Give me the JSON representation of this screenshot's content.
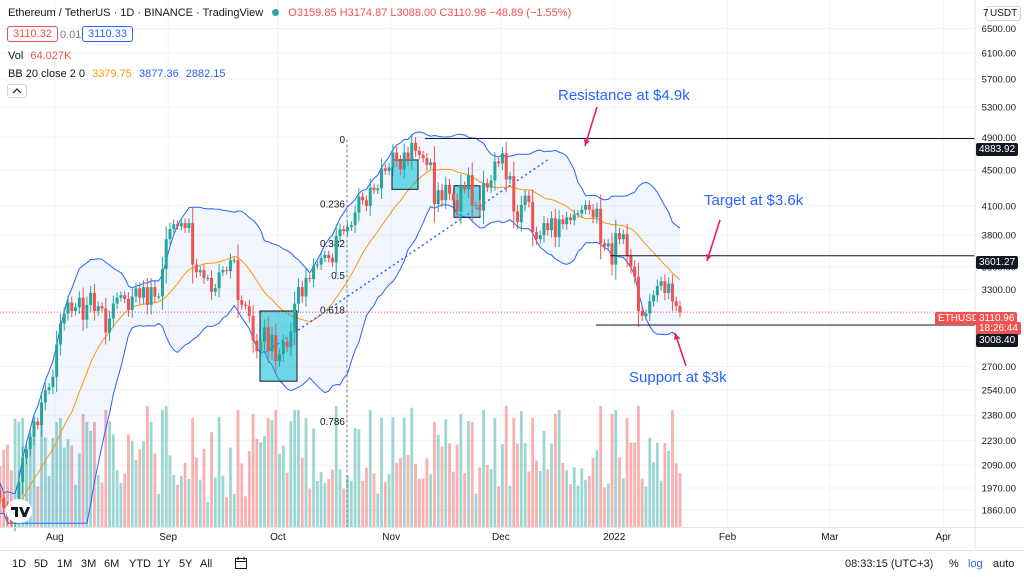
{
  "header": {
    "symbol": "Ethereum / TetherUS · 1D · BINANCE · TradingView",
    "ohlc": "O3159.85 H3174.87 L3088.00 C3110.96 −48.89 (−1.55%)",
    "bid": "3110.32",
    "spread": "0.01",
    "ask": "3110.33",
    "vol_label": "Vol",
    "vol_value": "64.027K",
    "bb_label": "BB 20 close 2 0",
    "bb_basis": "3379.75",
    "bb_upper": "3877.36",
    "bb_lower": "2882.15"
  },
  "price_axis": {
    "currency": "USDT",
    "top_tick": "7"
  },
  "colors": {
    "up": "#26a69a",
    "down": "#ef5350",
    "bb_band": "#2962ff",
    "bb_basis": "#ff9800",
    "annotation_text": "#2962ff",
    "arrow": "#e91e63"
  },
  "bottom_bar": {
    "ranges": [
      "1D",
      "5D",
      "1M",
      "3M",
      "6M",
      "YTD",
      "1Y",
      "5Y",
      "All"
    ],
    "time": "08:33:15 (UTC+3)",
    "percent": "%",
    "log": "log",
    "auto": "auto"
  },
  "chart_data": {
    "type": "candlestick",
    "title": "Ethereum / TetherUS · 1D · BINANCE",
    "y_scale": "log",
    "ylim": [
      1780,
      7000
    ],
    "y_ticks": [
      6500,
      6100,
      5700,
      5300,
      4900,
      4500,
      4100,
      3800,
      3500,
      3300,
      3000,
      2700,
      2540,
      2380,
      2230,
      2090,
      1970,
      1860
    ],
    "y_tick_labels": [
      "6500.00",
      "6100.00",
      "5700.00",
      "5300.00",
      "4900.00",
      "4500.00",
      "4100.00",
      "3800.00",
      "3500.00",
      "3300.00",
      "3000.00",
      "2700.00",
      "2540.00",
      "2380.00",
      "2230.00",
      "2090.00",
      "1970.00",
      "1860.00"
    ],
    "x_tick_labels": [
      "Aug",
      "Sep",
      "Oct",
      "Nov",
      "Dec",
      "2022",
      "Feb",
      "Mar",
      "Apr"
    ],
    "x_tick_dates": [
      "2021-08-01",
      "2021-09-01",
      "2021-10-01",
      "2021-11-01",
      "2021-12-01",
      "2022-01-01",
      "2022-02-01",
      "2022-03-01",
      "2022-04-01"
    ],
    "first_date": "2021-07-17",
    "last_date": "2022-01-19",
    "closes": [
      1920,
      1870,
      1820,
      1800,
      1870,
      2000,
      2130,
      2180,
      2250,
      2340,
      2320,
      2460,
      2540,
      2560,
      2630,
      2860,
      3020,
      3100,
      3190,
      3120,
      3150,
      3230,
      3050,
      3170,
      3270,
      3120,
      3160,
      3140,
      2950,
      3060,
      3180,
      3230,
      3250,
      3220,
      3130,
      3240,
      3310,
      3230,
      3320,
      3170,
      3320,
      3240,
      3240,
      3480,
      3760,
      3860,
      3910,
      3890,
      3920,
      3870,
      3920,
      3520,
      3450,
      3470,
      3400,
      3400,
      3280,
      3310,
      3450,
      3470,
      3460,
      3560,
      3560,
      3210,
      3170,
      3160,
      3080,
      2890,
      2810,
      2880,
      2990,
      2810,
      2930,
      2740,
      2790,
      2880,
      2840,
      2960,
      3180,
      3320,
      3240,
      3400,
      3390,
      3510,
      3520,
      3580,
      3610,
      3580,
      3540,
      3790,
      3860,
      3840,
      3880,
      3900,
      4030,
      4200,
      4160,
      4100,
      4300,
      4270,
      4290,
      4520,
      4490,
      4530,
      4710,
      4610,
      4510,
      4710,
      4620,
      4830,
      4730,
      4680,
      4640,
      4560,
      4590,
      4120,
      4270,
      4160,
      4330,
      4230,
      4160,
      4040,
      4320,
      4280,
      4440,
      4100,
      4110,
      4050,
      4350,
      4300,
      4380,
      4600,
      4580,
      4700,
      4390,
      4430,
      4040,
      3930,
      4110,
      4210,
      4140,
      3830,
      3760,
      3800,
      3920,
      3850,
      3970,
      3780,
      3960,
      3910,
      3980,
      3950,
      4010,
      4020,
      4060,
      4110,
      4060,
      3980,
      4070,
      3720,
      3690,
      3720,
      3520,
      3820,
      3760,
      3810,
      3600,
      3500,
      3410,
      3120,
      3080,
      3100,
      3200,
      3250,
      3330,
      3370,
      3270,
      3350,
      3200,
      3160,
      3110
    ],
    "bollinger": {
      "length": 20,
      "source": "close",
      "stddev": 2,
      "basis": 3379.75,
      "upper": 3877.36,
      "lower": 2882.15
    },
    "fibonacci": {
      "levels": [
        {
          "ratio": "0",
          "price": 4870
        },
        {
          "ratio": "0.236",
          "price": 4120
        },
        {
          "ratio": "0.382",
          "price": 3720
        },
        {
          "ratio": "0.5",
          "price": 3420
        },
        {
          "ratio": "0.618",
          "price": 3130
        },
        {
          "ratio": "0.786",
          "price": 2340
        }
      ]
    },
    "horizontal_levels": [
      {
        "price": 4883.92,
        "label": "4883.92"
      },
      {
        "price": 3601.27,
        "label": "3601.27"
      },
      {
        "price": 3008.4,
        "label": "3008.40"
      }
    ],
    "last_price": {
      "symbol": "ETHUSDT",
      "price": "3110.96",
      "countdown": "18:26:44"
    },
    "annotations": [
      {
        "text": "Resistance at $4.9k"
      },
      {
        "text": "Target at $3.6k"
      },
      {
        "text": "Support at $3k"
      }
    ]
  }
}
